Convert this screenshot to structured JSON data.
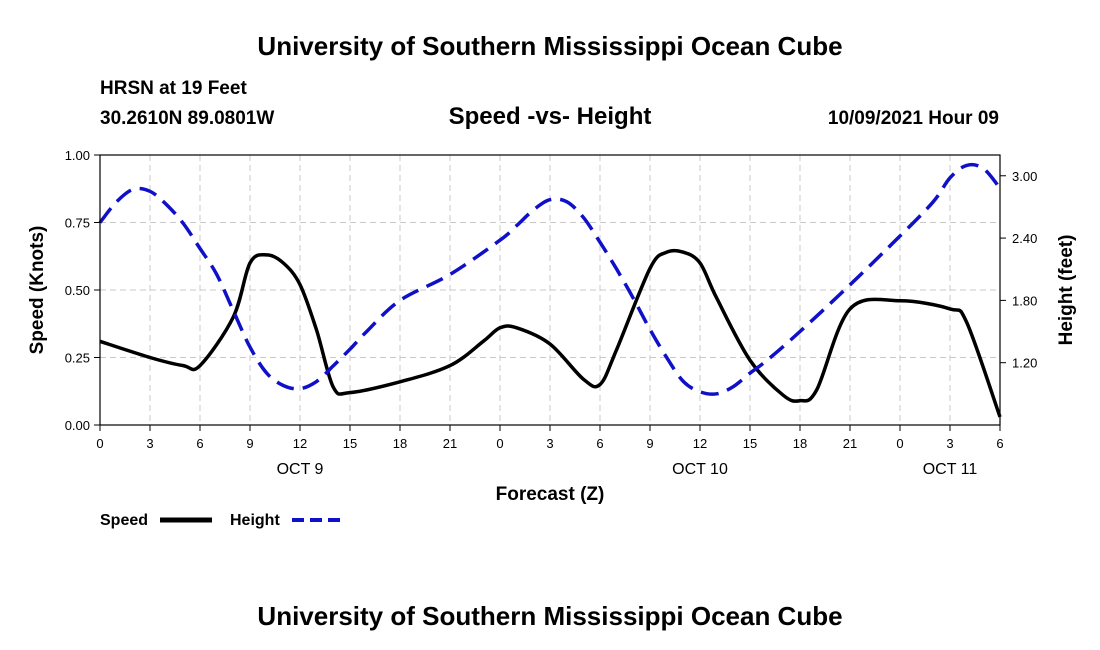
{
  "page": {
    "top_title": "University of Southern Mississippi Ocean Cube",
    "bottom_title": "University of Southern Mississippi Ocean Cube",
    "station_line1": "HRSN at 19 Feet",
    "station_line2": "30.2610N  89.0801W",
    "date_label": "10/09/2021 Hour 09"
  },
  "colors": {
    "speed": "#000000",
    "height": "#1010c8"
  },
  "chart_data": {
    "type": "line",
    "title": "Speed -vs- Height",
    "xlabel": "Forecast (Z)",
    "ylabel": "Speed (Knots)",
    "y2label": "Height (feet)",
    "x_range_hours": [
      0,
      54
    ],
    "x_ticks": [
      {
        "h": 0,
        "label": "0"
      },
      {
        "h": 3,
        "label": "3"
      },
      {
        "h": 6,
        "label": "6"
      },
      {
        "h": 9,
        "label": "9"
      },
      {
        "h": 12,
        "label": "12"
      },
      {
        "h": 15,
        "label": "15"
      },
      {
        "h": 18,
        "label": "18"
      },
      {
        "h": 21,
        "label": "21"
      },
      {
        "h": 24,
        "label": "0"
      },
      {
        "h": 27,
        "label": "3"
      },
      {
        "h": 30,
        "label": "6"
      },
      {
        "h": 33,
        "label": "9"
      },
      {
        "h": 36,
        "label": "12"
      },
      {
        "h": 39,
        "label": "15"
      },
      {
        "h": 42,
        "label": "18"
      },
      {
        "h": 45,
        "label": "21"
      },
      {
        "h": 48,
        "label": "0"
      },
      {
        "h": 51,
        "label": "3"
      },
      {
        "h": 54,
        "label": "6"
      }
    ],
    "day_labels": [
      {
        "h": 12,
        "label": "OCT 9"
      },
      {
        "h": 36,
        "label": "OCT 10"
      },
      {
        "h": 51,
        "label": "OCT 11"
      }
    ],
    "ylim": [
      0,
      1.0
    ],
    "y_ticks": [
      {
        "v": 0.0,
        "label": "0.00"
      },
      {
        "v": 0.25,
        "label": "0.25"
      },
      {
        "v": 0.5,
        "label": "0.50"
      },
      {
        "v": 0.75,
        "label": "0.75"
      },
      {
        "v": 1.0,
        "label": "1.00"
      }
    ],
    "y2lim": [
      0.6,
      3.2
    ],
    "y2_ticks": [
      {
        "v": 1.2,
        "label": "1.20"
      },
      {
        "v": 1.8,
        "label": "1.80"
      },
      {
        "v": 2.4,
        "label": "2.40"
      },
      {
        "v": 3.0,
        "label": "3.00"
      }
    ],
    "series": [
      {
        "name": "Speed",
        "axis": "left",
        "style": "solid",
        "x": [
          0,
          3,
          5,
          6,
          8,
          9,
          10,
          11,
          12,
          13,
          14,
          15,
          18,
          21,
          23,
          24,
          25,
          27,
          29,
          30,
          31,
          33,
          34,
          35,
          36,
          37,
          39,
          41,
          42,
          43,
          45,
          48,
          51,
          52,
          54
        ],
        "y": [
          0.31,
          0.25,
          0.22,
          0.22,
          0.4,
          0.6,
          0.63,
          0.6,
          0.52,
          0.35,
          0.14,
          0.12,
          0.16,
          0.22,
          0.31,
          0.36,
          0.36,
          0.3,
          0.17,
          0.15,
          0.28,
          0.58,
          0.64,
          0.64,
          0.6,
          0.47,
          0.24,
          0.11,
          0.09,
          0.13,
          0.43,
          0.46,
          0.43,
          0.38,
          0.03
        ]
      },
      {
        "name": "Height",
        "axis": "right",
        "style": "dashed",
        "x": [
          0,
          1,
          2,
          3,
          4,
          5,
          6,
          7,
          8,
          9,
          10,
          11,
          12,
          13,
          14,
          15,
          16,
          18,
          21,
          24,
          25,
          26,
          27,
          28,
          29,
          30,
          31,
          32,
          33,
          34,
          35,
          36,
          37,
          38,
          39,
          40,
          42,
          45,
          48,
          50,
          51,
          52,
          53,
          54
        ],
        "y": [
          2.55,
          2.75,
          2.87,
          2.85,
          2.72,
          2.54,
          2.3,
          2.05,
          1.7,
          1.35,
          1.1,
          0.98,
          0.95,
          1.02,
          1.17,
          1.33,
          1.5,
          1.8,
          2.05,
          2.38,
          2.52,
          2.67,
          2.77,
          2.75,
          2.6,
          2.36,
          2.1,
          1.82,
          1.52,
          1.25,
          1.02,
          0.92,
          0.9,
          0.97,
          1.1,
          1.22,
          1.5,
          1.95,
          2.42,
          2.75,
          2.98,
          3.1,
          3.07,
          2.88
        ]
      }
    ],
    "legend": [
      {
        "label": "Speed",
        "style": "solid"
      },
      {
        "label": "Height",
        "style": "dashed"
      }
    ],
    "grid": true
  }
}
